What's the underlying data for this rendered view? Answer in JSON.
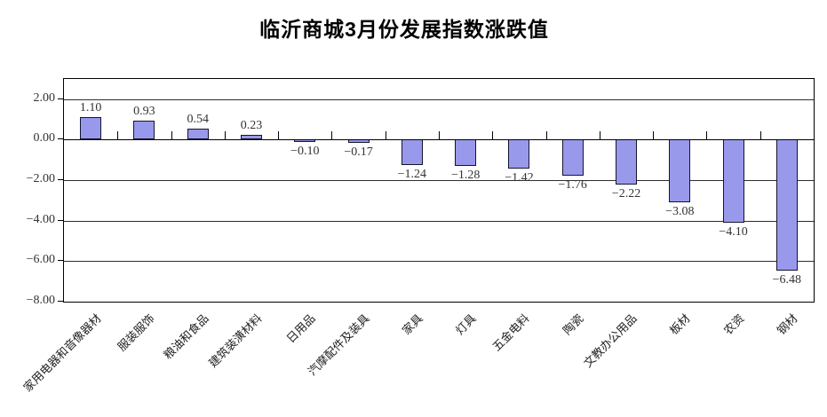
{
  "chart_data": {
    "type": "bar",
    "title": "临沂商城3月份发展指数涨跌值",
    "categories": [
      "家用电器和音像器材",
      "服装服饰",
      "粮油和食品",
      "建筑装潢材料",
      "日用品",
      "汽摩配件及装具",
      "家具",
      "灯具",
      "五金电料",
      "陶瓷",
      "文教办公用品",
      "板材",
      "农资",
      "钢材"
    ],
    "values": [
      1.1,
      0.93,
      0.54,
      0.23,
      -0.1,
      -0.17,
      -1.24,
      -1.28,
      -1.42,
      -1.76,
      -2.22,
      -3.08,
      -4.1,
      -6.48
    ],
    "value_labels": [
      "1.10",
      "0.93",
      "0.54",
      "0.23",
      "−0.10",
      "−0.17",
      "−1.24",
      "−1.28",
      "−1.42",
      "−1.76",
      "−2.22",
      "−3.08",
      "−4.10",
      "−6.48"
    ],
    "xlabel": "",
    "ylabel": "",
    "y_axis": {
      "min": -8,
      "max": 3,
      "major_unit": 2,
      "ticks": [
        2,
        0,
        -2,
        -4,
        -6,
        -8
      ],
      "tick_labels": [
        "2.00",
        "0.00",
        "−2.00",
        "−4.00",
        "−6.00",
        "−8.00"
      ]
    },
    "grid": true,
    "legend_position": "none",
    "colors": {
      "background": "#ffffff",
      "bar_fill": "#9999ec",
      "bar_border": "#14142d",
      "gridline": "#2e2e2e",
      "axis": "#000000",
      "text": "#333333"
    }
  }
}
